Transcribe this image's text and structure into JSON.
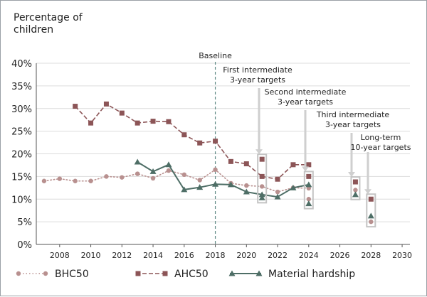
{
  "chart_data": {
    "type": "line",
    "ylabel": "Percentage of\nchildren",
    "xlim": [
      2006.5,
      2030.5
    ],
    "ylim": [
      0,
      40
    ],
    "x_ticks": [
      2008,
      2010,
      2012,
      2014,
      2016,
      2018,
      2020,
      2022,
      2024,
      2026,
      2028,
      2030
    ],
    "y_ticks": [
      0,
      5,
      10,
      15,
      20,
      25,
      30,
      35,
      40
    ],
    "y_tick_labels": [
      "0%",
      "5%",
      "10%",
      "15%",
      "20%",
      "25%",
      "30%",
      "35%",
      "40%"
    ],
    "baseline": {
      "x": 2018,
      "label": "Baseline"
    },
    "series": [
      {
        "name": "BHC50",
        "color": "#b8908f",
        "marker": "circle",
        "style": "dotted",
        "x": [
          2007,
          2008,
          2009,
          2010,
          2011,
          2012,
          2013,
          2014,
          2015,
          2016,
          2017,
          2018,
          2019,
          2020,
          2021,
          2022,
          2023,
          2024
        ],
        "values": [
          14.0,
          14.5,
          14.0,
          14.0,
          15.0,
          14.8,
          15.6,
          14.6,
          16.3,
          15.4,
          14.2,
          16.5,
          13.5,
          13.0,
          12.8,
          11.6,
          12.5,
          12.4
        ]
      },
      {
        "name": "AHC50",
        "color": "#8c5557",
        "marker": "square",
        "style": "dashed",
        "x": [
          2009,
          2010,
          2011,
          2012,
          2013,
          2014,
          2015,
          2016,
          2017,
          2018,
          2019,
          2020,
          2021,
          2022,
          2023,
          2024
        ],
        "values": [
          30.5,
          26.8,
          31.0,
          29.0,
          26.8,
          27.2,
          27.1,
          24.2,
          22.4,
          22.8,
          18.3,
          17.8,
          15.0,
          14.4,
          17.6,
          17.6
        ]
      },
      {
        "name": "Material hardship",
        "color": "#4e6e66",
        "marker": "triangle",
        "style": "solid",
        "x": [
          2013,
          2014,
          2015,
          2016,
          2017,
          2018,
          2019,
          2020,
          2021,
          2022,
          2023,
          2024
        ],
        "values": [
          18.2,
          16.1,
          17.6,
          12.1,
          12.6,
          13.3,
          13.2,
          11.6,
          11.0,
          10.5,
          12.5,
          13.2
        ]
      }
    ],
    "targets": [
      {
        "label": "First intermediate\n3-year targets",
        "x": 2021,
        "values": {
          "AHC50": 18.8,
          "Material hardship": 10.3
        }
      },
      {
        "label": "Second intermediate\n3-year targets",
        "x": 2024,
        "values": {
          "AHC50": 15.0,
          "BHC50": 10.0,
          "Material hardship": 9.0
        }
      },
      {
        "label": "Third intermediate\n3-year targets",
        "x": 2027,
        "values": {
          "AHC50": 13.8,
          "BHC50": 12.0,
          "Material hardship": 11.0
        }
      },
      {
        "label": "Long-term\n10-year targets",
        "x": 2028,
        "values": {
          "AHC50": 10.0,
          "Material hardship": 6.3,
          "BHC50": 5.0
        }
      }
    ],
    "legend_position": "bottom"
  }
}
